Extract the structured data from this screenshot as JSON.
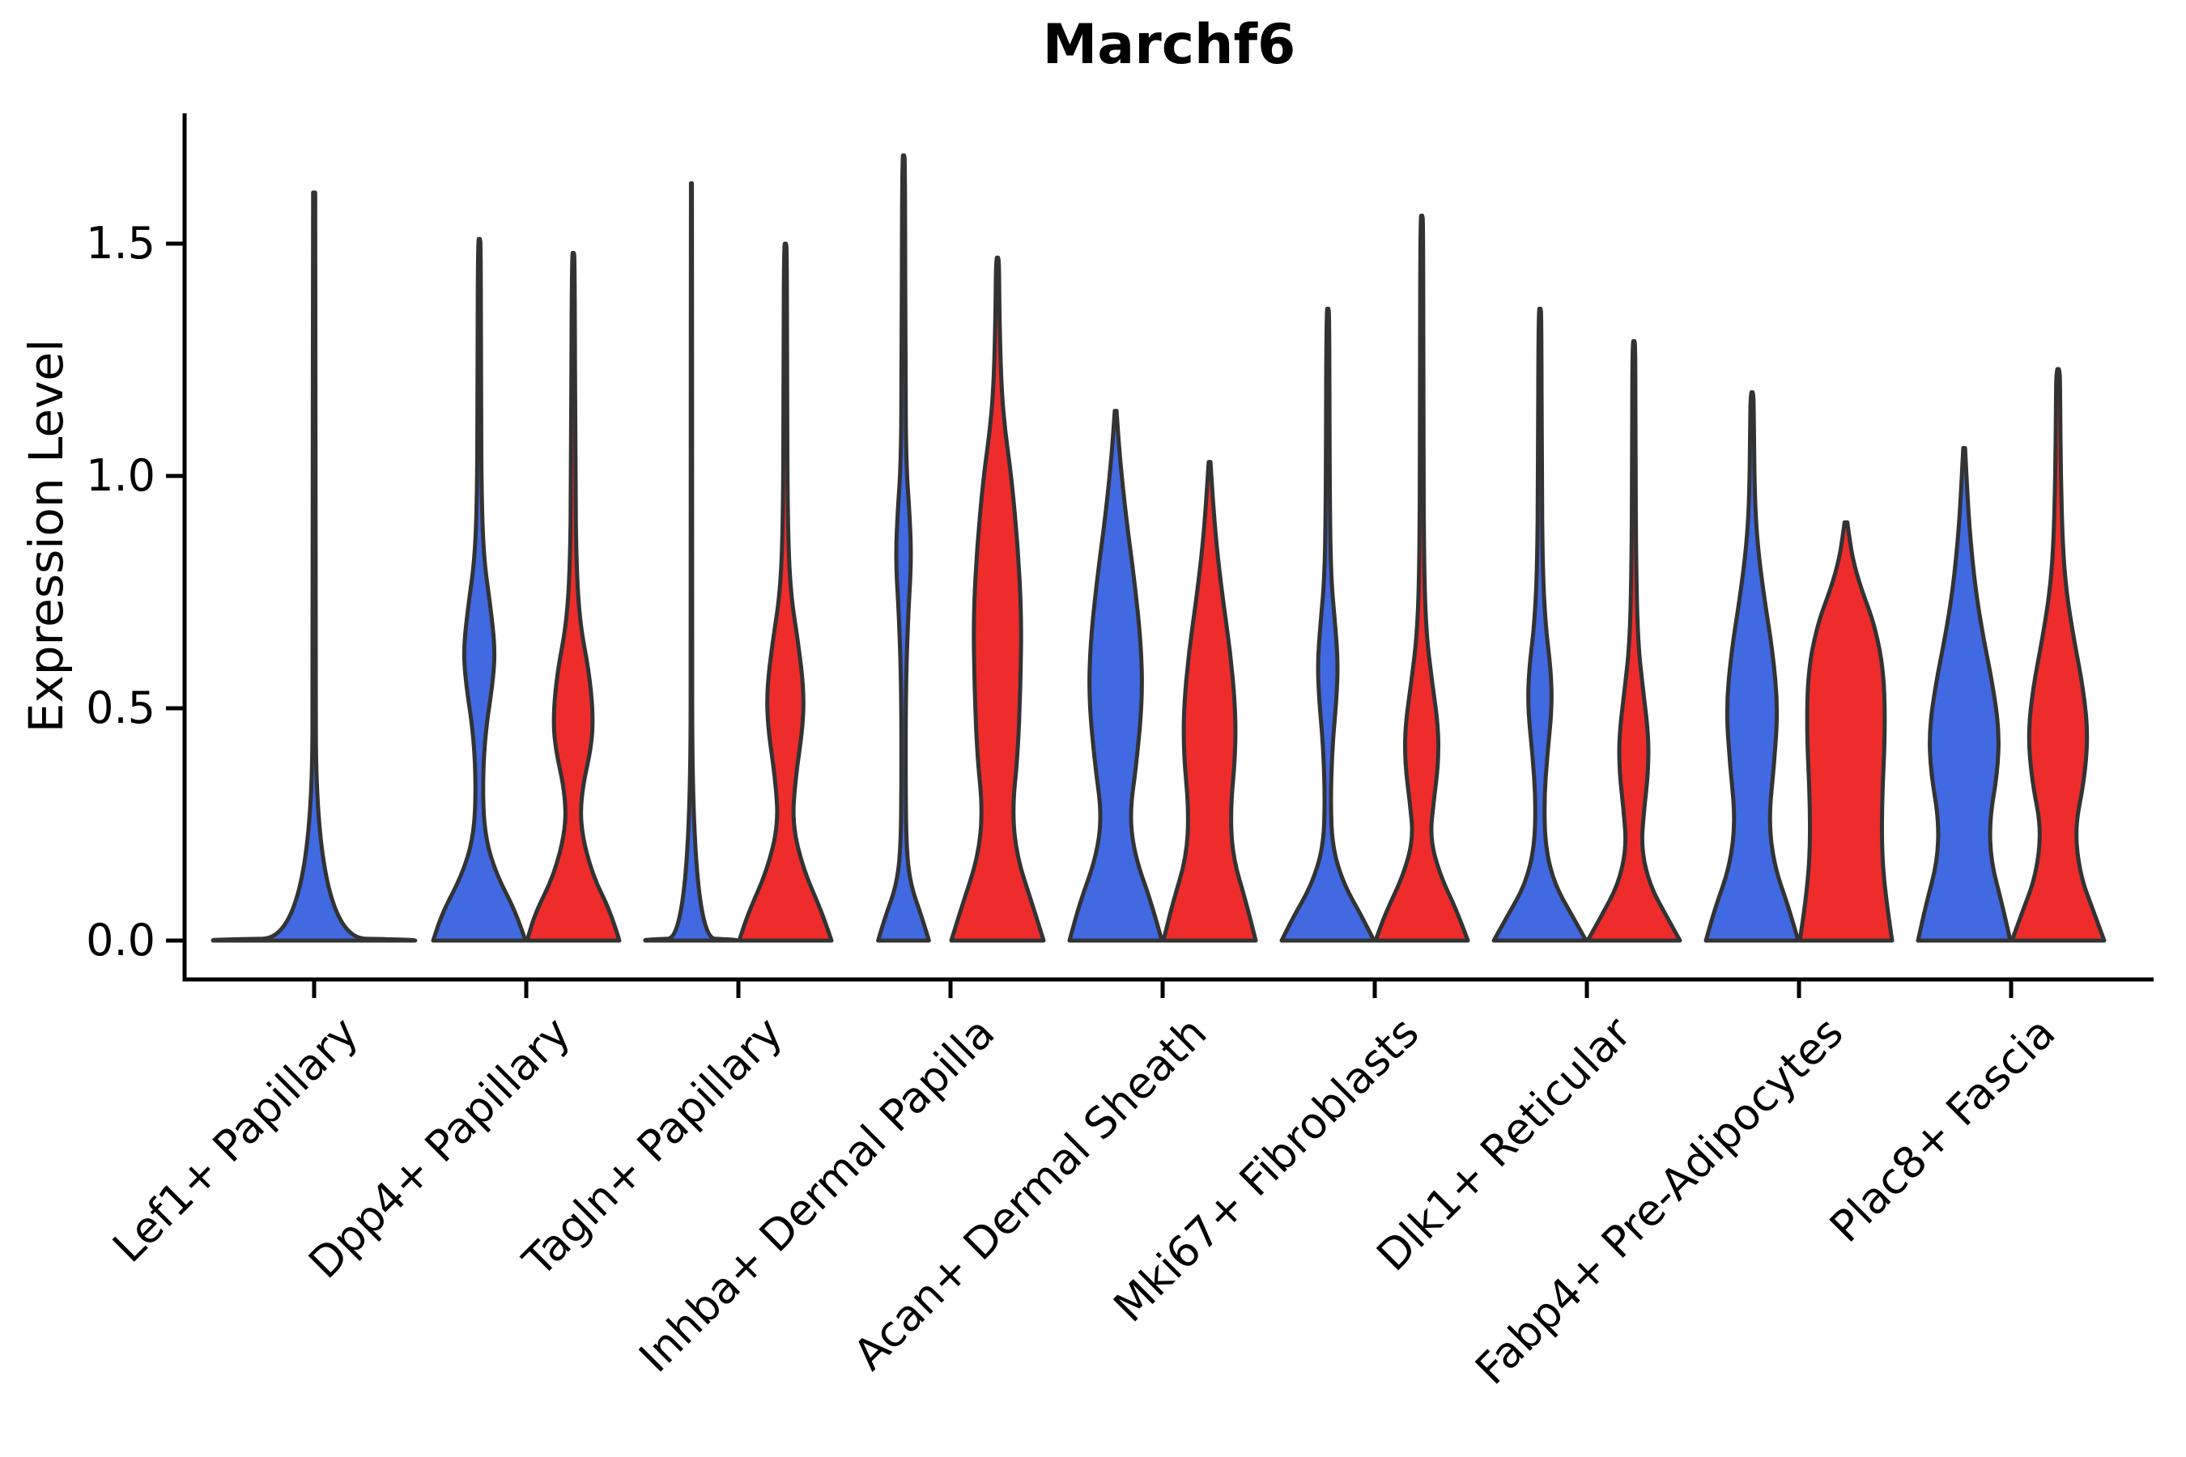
{
  "chart": {
    "title": "Marchf6",
    "ylabel": "Expression Level",
    "colors": {
      "blue": "#4169E1",
      "red": "#EE2C2C",
      "outline": "#333333",
      "axis": "#000000",
      "background": "#FFFFFF"
    }
  },
  "chart_data": {
    "type": "violin",
    "title": "Marchf6",
    "xlabel": "",
    "ylabel": "Expression Level",
    "ylim": [
      -0.05,
      1.75
    ],
    "grid": false,
    "legend_position": "none",
    "y_ticks": [
      {
        "value": 0.0,
        "label": "0.0"
      },
      {
        "value": 0.5,
        "label": "0.5"
      },
      {
        "value": 1.0,
        "label": "1.0"
      },
      {
        "value": 1.5,
        "label": "1.5"
      }
    ],
    "categories": [
      "Lef1+ Papillary",
      "Dpp4+ Papillary",
      "Tagln+ Papillary",
      "Inhba+ Dermal Papilla",
      "Acan+ Dermal Sheath",
      "Mki67+ Fibroblasts",
      "Dlk1+ Reticular",
      "Fabp4+ Pre-Adipocytes",
      "Plac8+ Fascia"
    ],
    "groups": [
      {
        "key": "blue",
        "color": "#4169E1",
        "position": "left"
      },
      {
        "key": "red",
        "color": "#EE2C2C",
        "position": "right"
      }
    ],
    "violins": [
      {
        "category": "Lef1+ Papillary",
        "group": "blue",
        "color": "blue",
        "span": "full",
        "max_expression": 1.61,
        "profile": [
          [
            0,
            1
          ],
          [
            0.002,
            1
          ],
          [
            0.006,
            0.02
          ],
          [
            0.9,
            0.014
          ],
          [
            1.6,
            0.011
          ],
          [
            1.61,
            0.01
          ]
        ]
      },
      {
        "category": "Dpp4+ Papillary",
        "group": "blue",
        "color": "blue",
        "span": "half",
        "max_expression": 1.51,
        "profile": [
          [
            0,
            1
          ],
          [
            0.06,
            0.8
          ],
          [
            0.14,
            0.38
          ],
          [
            0.22,
            0.13
          ],
          [
            0.32,
            0.07
          ],
          [
            0.44,
            0.12
          ],
          [
            0.56,
            0.3
          ],
          [
            0.63,
            0.34
          ],
          [
            0.72,
            0.24
          ],
          [
            0.82,
            0.1
          ],
          [
            0.95,
            0.05
          ],
          [
            1.15,
            0.038
          ],
          [
            1.5,
            0.032
          ],
          [
            1.51,
            0.012
          ]
        ]
      },
      {
        "category": "Dpp4+ Papillary",
        "group": "red",
        "color": "red",
        "span": "half",
        "max_expression": 1.48,
        "profile": [
          [
            0,
            1
          ],
          [
            0.06,
            0.82
          ],
          [
            0.14,
            0.42
          ],
          [
            0.24,
            0.16
          ],
          [
            0.32,
            0.18
          ],
          [
            0.42,
            0.4
          ],
          [
            0.49,
            0.43
          ],
          [
            0.58,
            0.34
          ],
          [
            0.68,
            0.15
          ],
          [
            0.8,
            0.07
          ],
          [
            1.0,
            0.045
          ],
          [
            1.47,
            0.032
          ],
          [
            1.48,
            0.012
          ]
        ]
      },
      {
        "category": "Tagln+ Papillary",
        "group": "blue",
        "color": "blue",
        "span": "half",
        "max_expression": 1.63,
        "profile": [
          [
            0,
            1
          ],
          [
            0.002,
            1
          ],
          [
            0.006,
            0.02
          ],
          [
            1.0,
            0.014
          ],
          [
            1.62,
            0.012
          ],
          [
            1.63,
            0.01
          ]
        ]
      },
      {
        "category": "Tagln+ Papillary",
        "group": "red",
        "color": "red",
        "span": "half",
        "max_expression": 1.5,
        "profile": [
          [
            0,
            1
          ],
          [
            0.06,
            0.8
          ],
          [
            0.15,
            0.4
          ],
          [
            0.25,
            0.15
          ],
          [
            0.35,
            0.22
          ],
          [
            0.46,
            0.38
          ],
          [
            0.54,
            0.4
          ],
          [
            0.64,
            0.28
          ],
          [
            0.75,
            0.11
          ],
          [
            0.9,
            0.05
          ],
          [
            1.2,
            0.038
          ],
          [
            1.49,
            0.032
          ],
          [
            1.5,
            0.012
          ]
        ]
      },
      {
        "category": "Inhba+ Dermal Papilla",
        "group": "blue",
        "color": "blue",
        "span": "half",
        "max_expression": 1.69,
        "profile": [
          [
            0,
            0.55
          ],
          [
            0.05,
            0.4
          ],
          [
            0.12,
            0.15
          ],
          [
            0.2,
            0.06
          ],
          [
            0.35,
            0.045
          ],
          [
            0.55,
            0.05
          ],
          [
            0.7,
            0.1
          ],
          [
            0.82,
            0.17
          ],
          [
            0.92,
            0.13
          ],
          [
            1.02,
            0.06
          ],
          [
            1.2,
            0.04
          ],
          [
            1.68,
            0.032
          ],
          [
            1.69,
            0.012
          ]
        ]
      },
      {
        "category": "Inhba+ Dermal Papilla",
        "group": "red",
        "color": "red",
        "span": "half",
        "max_expression": 1.47,
        "profile": [
          [
            0,
            1
          ],
          [
            0.08,
            0.75
          ],
          [
            0.18,
            0.42
          ],
          [
            0.28,
            0.32
          ],
          [
            0.4,
            0.44
          ],
          [
            0.55,
            0.5
          ],
          [
            0.7,
            0.52
          ],
          [
            0.85,
            0.44
          ],
          [
            1.0,
            0.3
          ],
          [
            1.1,
            0.16
          ],
          [
            1.2,
            0.08
          ],
          [
            1.35,
            0.042
          ],
          [
            1.46,
            0.034
          ],
          [
            1.47,
            0.012
          ]
        ]
      },
      {
        "category": "Acan+ Dermal Sheath",
        "group": "blue",
        "color": "blue",
        "span": "half",
        "max_expression": 1.14,
        "profile": [
          [
            0,
            1
          ],
          [
            0.08,
            0.78
          ],
          [
            0.18,
            0.42
          ],
          [
            0.27,
            0.3
          ],
          [
            0.38,
            0.45
          ],
          [
            0.52,
            0.58
          ],
          [
            0.64,
            0.55
          ],
          [
            0.78,
            0.4
          ],
          [
            0.9,
            0.24
          ],
          [
            1.0,
            0.13
          ],
          [
            1.08,
            0.06
          ],
          [
            1.14,
            0.02
          ]
        ]
      },
      {
        "category": "Acan+ Dermal Sheath",
        "group": "red",
        "color": "red",
        "span": "half",
        "max_expression": 1.03,
        "profile": [
          [
            0,
            1
          ],
          [
            0.08,
            0.8
          ],
          [
            0.18,
            0.5
          ],
          [
            0.28,
            0.45
          ],
          [
            0.4,
            0.56
          ],
          [
            0.5,
            0.56
          ],
          [
            0.62,
            0.45
          ],
          [
            0.74,
            0.28
          ],
          [
            0.85,
            0.15
          ],
          [
            0.95,
            0.07
          ],
          [
            1.03,
            0.02
          ]
        ]
      },
      {
        "category": "Mki67+ Fibroblasts",
        "group": "blue",
        "color": "blue",
        "span": "half",
        "max_expression": 1.36,
        "profile": [
          [
            0,
            1
          ],
          [
            0.05,
            0.75
          ],
          [
            0.12,
            0.35
          ],
          [
            0.2,
            0.1
          ],
          [
            0.3,
            0.06
          ],
          [
            0.42,
            0.1
          ],
          [
            0.52,
            0.19
          ],
          [
            0.6,
            0.22
          ],
          [
            0.68,
            0.16
          ],
          [
            0.78,
            0.07
          ],
          [
            0.95,
            0.042
          ],
          [
            1.35,
            0.032
          ],
          [
            1.36,
            0.012
          ]
        ]
      },
      {
        "category": "Mki67+ Fibroblasts",
        "group": "red",
        "color": "red",
        "span": "half",
        "max_expression": 1.56,
        "profile": [
          [
            0,
            1
          ],
          [
            0.06,
            0.78
          ],
          [
            0.14,
            0.4
          ],
          [
            0.22,
            0.18
          ],
          [
            0.3,
            0.26
          ],
          [
            0.38,
            0.36
          ],
          [
            0.46,
            0.36
          ],
          [
            0.56,
            0.22
          ],
          [
            0.66,
            0.1
          ],
          [
            0.8,
            0.05
          ],
          [
            1.1,
            0.036
          ],
          [
            1.55,
            0.032
          ],
          [
            1.56,
            0.012
          ]
        ]
      },
      {
        "category": "Dlk1+ Reticular",
        "group": "blue",
        "color": "blue",
        "span": "half",
        "max_expression": 1.36,
        "profile": [
          [
            0,
            1
          ],
          [
            0.05,
            0.72
          ],
          [
            0.12,
            0.32
          ],
          [
            0.2,
            0.12
          ],
          [
            0.3,
            0.09
          ],
          [
            0.4,
            0.16
          ],
          [
            0.5,
            0.26
          ],
          [
            0.58,
            0.24
          ],
          [
            0.68,
            0.12
          ],
          [
            0.8,
            0.06
          ],
          [
            1.0,
            0.04
          ],
          [
            1.35,
            0.032
          ],
          [
            1.36,
            0.012
          ]
        ]
      },
      {
        "category": "Dlk1+ Reticular",
        "group": "red",
        "color": "red",
        "span": "half",
        "max_expression": 1.29,
        "profile": [
          [
            0,
            1
          ],
          [
            0.05,
            0.72
          ],
          [
            0.12,
            0.34
          ],
          [
            0.2,
            0.16
          ],
          [
            0.28,
            0.22
          ],
          [
            0.36,
            0.31
          ],
          [
            0.44,
            0.32
          ],
          [
            0.54,
            0.2
          ],
          [
            0.64,
            0.09
          ],
          [
            0.8,
            0.05
          ],
          [
            1.05,
            0.036
          ],
          [
            1.28,
            0.032
          ],
          [
            1.29,
            0.012
          ]
        ]
      },
      {
        "category": "Fabp4+ Pre-Adipocytes",
        "group": "blue",
        "color": "blue",
        "span": "half",
        "max_expression": 1.18,
        "profile": [
          [
            0,
            1
          ],
          [
            0.07,
            0.8
          ],
          [
            0.16,
            0.48
          ],
          [
            0.26,
            0.36
          ],
          [
            0.38,
            0.48
          ],
          [
            0.5,
            0.56
          ],
          [
            0.62,
            0.45
          ],
          [
            0.74,
            0.26
          ],
          [
            0.85,
            0.12
          ],
          [
            0.95,
            0.06
          ],
          [
            1.1,
            0.04
          ],
          [
            1.17,
            0.034
          ],
          [
            1.18,
            0.012
          ]
        ]
      },
      {
        "category": "Fabp4+ Pre-Adipocytes",
        "group": "red",
        "color": "red",
        "span": "half",
        "max_expression": 0.9,
        "profile": [
          [
            0,
            1
          ],
          [
            0.08,
            0.88
          ],
          [
            0.18,
            0.78
          ],
          [
            0.3,
            0.78
          ],
          [
            0.45,
            0.85
          ],
          [
            0.58,
            0.82
          ],
          [
            0.68,
            0.62
          ],
          [
            0.76,
            0.32
          ],
          [
            0.82,
            0.15
          ],
          [
            0.87,
            0.07
          ],
          [
            0.9,
            0.03
          ]
        ]
      },
      {
        "category": "Plac8+ Fascia",
        "group": "blue",
        "color": "blue",
        "span": "half",
        "max_expression": 1.06,
        "profile": [
          [
            0,
            1
          ],
          [
            0.08,
            0.82
          ],
          [
            0.17,
            0.58
          ],
          [
            0.26,
            0.55
          ],
          [
            0.36,
            0.72
          ],
          [
            0.45,
            0.76
          ],
          [
            0.55,
            0.62
          ],
          [
            0.66,
            0.4
          ],
          [
            0.76,
            0.24
          ],
          [
            0.88,
            0.12
          ],
          [
            0.98,
            0.06
          ],
          [
            1.06,
            0.02
          ]
        ]
      },
      {
        "category": "Plac8+ Fascia",
        "group": "red",
        "color": "red",
        "span": "half",
        "max_expression": 1.23,
        "profile": [
          [
            0,
            1
          ],
          [
            0.06,
            0.78
          ],
          [
            0.14,
            0.48
          ],
          [
            0.24,
            0.36
          ],
          [
            0.34,
            0.56
          ],
          [
            0.44,
            0.65
          ],
          [
            0.54,
            0.55
          ],
          [
            0.65,
            0.34
          ],
          [
            0.75,
            0.18
          ],
          [
            0.85,
            0.1
          ],
          [
            1.0,
            0.06
          ],
          [
            1.15,
            0.046
          ],
          [
            1.22,
            0.04
          ],
          [
            1.23,
            0.015
          ]
        ]
      }
    ]
  }
}
